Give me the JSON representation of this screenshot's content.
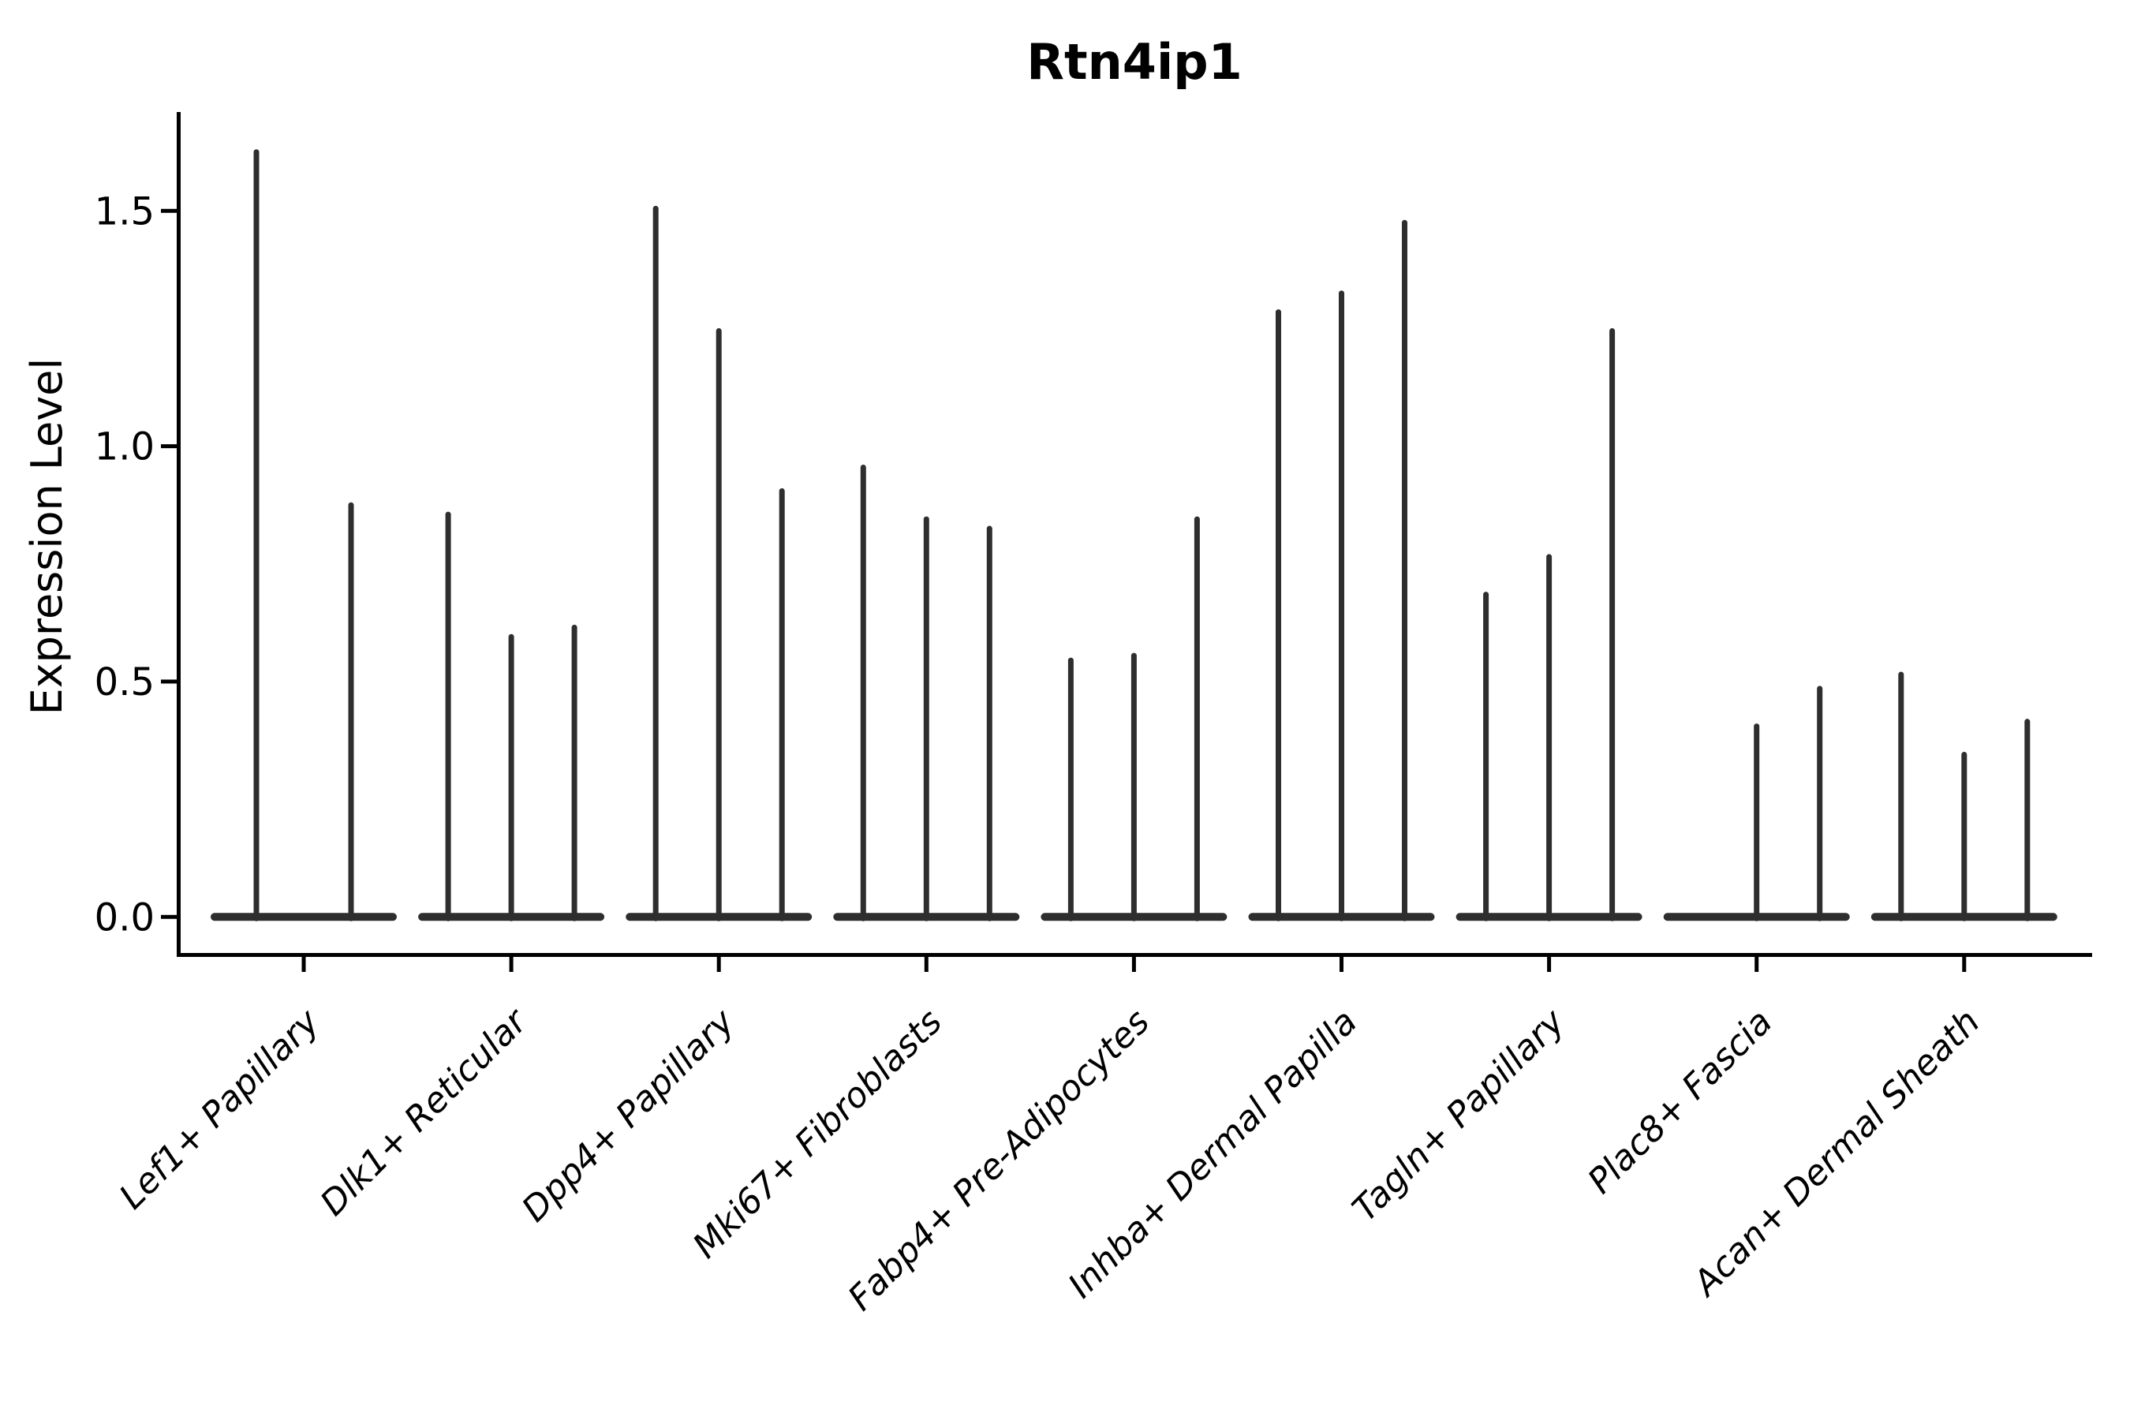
{
  "page": {
    "background": "#ffffff"
  },
  "chart_data": {
    "type": "violin",
    "title": "Rtn4ip1",
    "ylabel": "Expression Level",
    "xlabel": "",
    "ylim": [
      -0.08,
      1.71
    ],
    "yticks": [
      0,
      0.5,
      1.0,
      1.5
    ],
    "ytick_labels": [
      "0.0",
      "0.5",
      "1.0",
      "1.5"
    ],
    "grid": false,
    "legend_position": "none",
    "categories": [
      "Lef1+ Papillary",
      "Dlk1+ Reticular",
      "Dpp4+ Papillary",
      "Mki67+ Fibroblasts",
      "Fabp4+ Pre-Adipocytes",
      "Inhba+ Dermal Papilla",
      "Tagln+ Papillary",
      "Plac8+ Fascia",
      "Acan+ Dermal Sheath"
    ],
    "groups": [
      {
        "category": "Lef1+ Papillary",
        "violin_maxima": [
          1.63,
          0.88
        ]
      },
      {
        "category": "Dlk1+ Reticular",
        "violin_maxima": [
          0.86,
          0.6,
          0.62
        ]
      },
      {
        "category": "Dpp4+ Papillary",
        "violin_maxima": [
          1.51,
          1.25,
          0.91
        ]
      },
      {
        "category": "Mki67+ Fibroblasts",
        "violin_maxima": [
          0.96,
          0.85,
          0.83
        ]
      },
      {
        "category": "Fabp4+ Pre-Adipocytes",
        "violin_maxima": [
          0.55,
          0.56,
          0.85
        ]
      },
      {
        "category": "Inhba+ Dermal Papilla",
        "violin_maxima": [
          1.29,
          1.33,
          1.48
        ]
      },
      {
        "category": "Tagln+ Papillary",
        "violin_maxima": [
          0.69,
          0.77,
          1.25
        ]
      },
      {
        "category": "Plac8+ Fascia",
        "violin_maxima": [
          0.0,
          0.41,
          0.49
        ]
      },
      {
        "category": "Acan+ Dermal Sheath",
        "violin_maxima": [
          0.52,
          0.35,
          0.42
        ]
      }
    ],
    "colors": {
      "ink": "#000000",
      "violin": "#2e2e2e"
    }
  }
}
